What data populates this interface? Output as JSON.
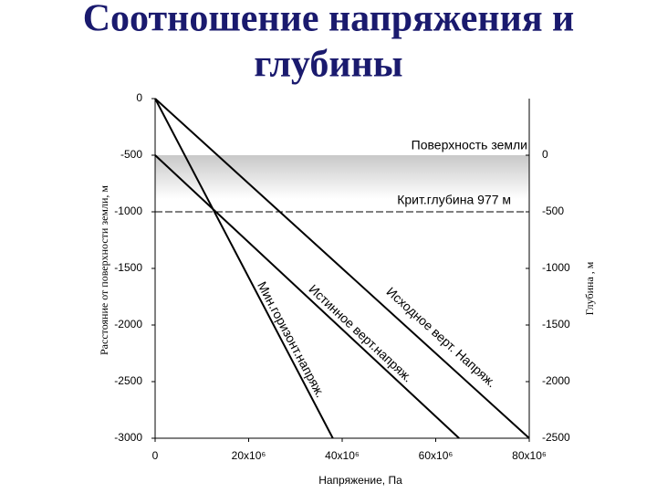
{
  "chart_data": {
    "type": "line",
    "title": [
      "Соотношение напряжения и",
      "глубины"
    ],
    "x_label": "Напряжение, Па",
    "y_label": "Расстояние от поверхности земли, м",
    "y2_label": "Глубина , м",
    "xlim": [
      0,
      80000000
    ],
    "xticks": [
      0,
      {
        "value": 20000000,
        "label": "20x10⁶"
      },
      {
        "value": 40000000,
        "label": "40x10⁶"
      },
      {
        "value": 60000000,
        "label": "60x10⁶"
      },
      {
        "value": 80000000,
        "label": "80x10⁶"
      }
    ],
    "ylim": [
      -3000,
      0
    ],
    "yticks": [
      0,
      -500,
      -1000,
      -1500,
      -2000,
      -2500,
      -3000
    ],
    "y2lim": [
      -2500,
      500
    ],
    "y2ticks": [
      0,
      -500,
      -1000,
      -1500,
      -2000,
      -2500
    ],
    "annotations": [
      "Поверхность земли",
      "Крит.глубина 977 м"
    ],
    "series": [
      {
        "name": "Мин.горизонт.напряж.",
        "color": "#000000",
        "x": [
          0,
          38000000
        ],
        "values": [
          0,
          -3000
        ]
      },
      {
        "name": "Истинное верт.напряж.",
        "color": "#000000",
        "x": [
          0,
          65000000
        ],
        "values": [
          -500,
          -3000
        ]
      },
      {
        "name": "Исходное верт. Напряж.",
        "color": "#000000",
        "x": [
          0,
          80000000
        ],
        "values": [
          0,
          -3000
        ]
      }
    ]
  }
}
